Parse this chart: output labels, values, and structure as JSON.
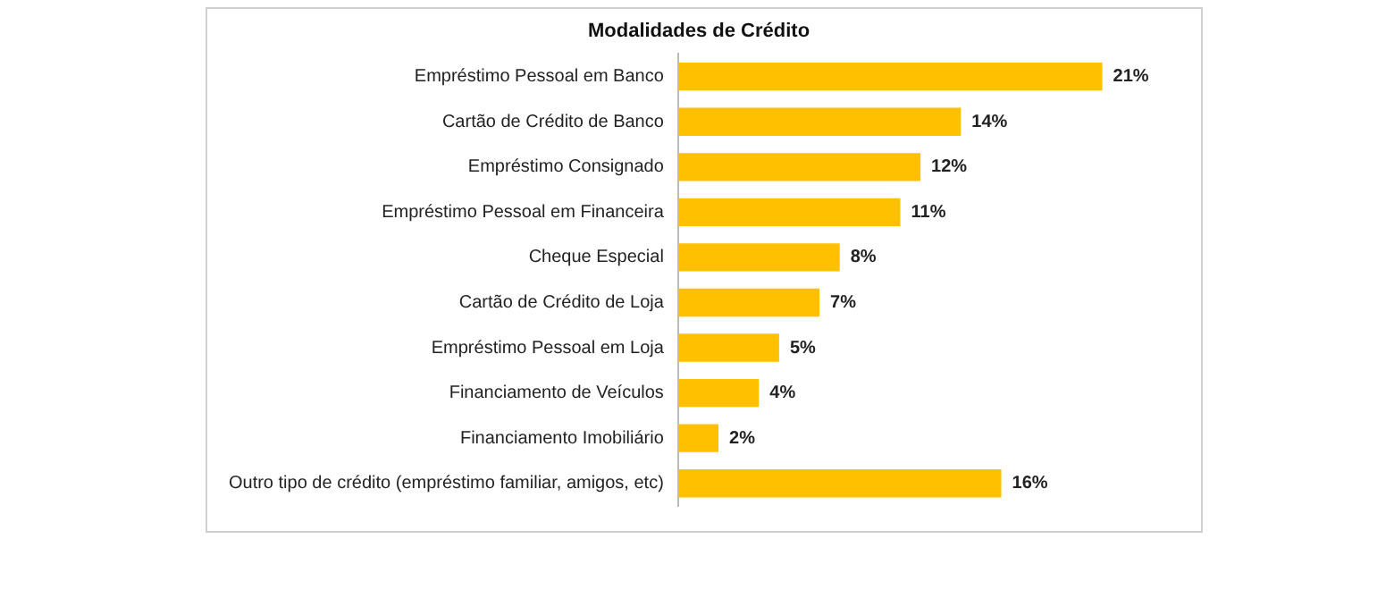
{
  "chart_data": {
    "type": "bar",
    "orientation": "horizontal",
    "title": "Modalidades de Crédito",
    "categories": [
      "Empréstimo Pessoal em Banco",
      "Cartão de Crédito de Banco",
      "Empréstimo Consignado",
      "Empréstimo Pessoal em Financeira",
      "Cheque Especial",
      "Cartão de Crédito de Loja",
      "Empréstimo Pessoal em Loja",
      "Financiamento de Veículos",
      "Financiamento Imobiliário",
      "Outro tipo de crédito (empréstimo familiar, amigos, etc)"
    ],
    "values": [
      21,
      14,
      12,
      11,
      8,
      7,
      5,
      4,
      2,
      16
    ],
    "value_labels": [
      "21%",
      "14%",
      "12%",
      "11%",
      "8%",
      "7%",
      "5%",
      "4%",
      "2%",
      "16%"
    ],
    "color": "#ffc000",
    "grid": false,
    "legend": false,
    "tick_labels": "y"
  }
}
